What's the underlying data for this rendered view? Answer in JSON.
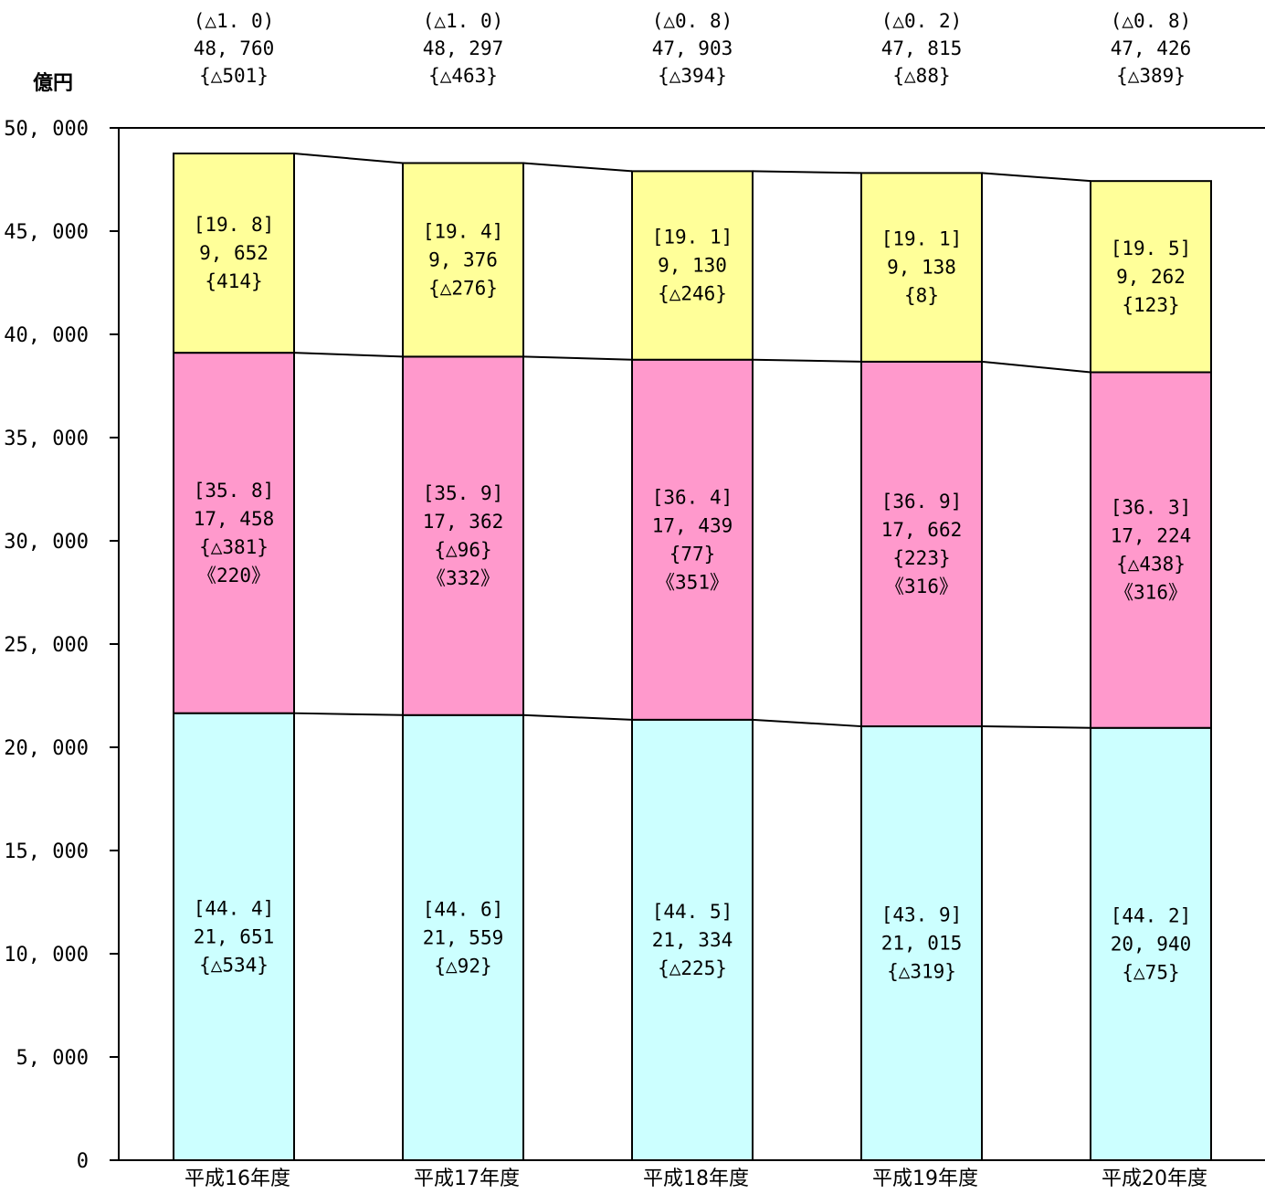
{
  "chart_data": {
    "type": "bar",
    "stacked": true,
    "unit_label": "億円",
    "categories": [
      "平成16年度",
      "平成17年度",
      "平成18年度",
      "平成19年度",
      "平成20年度"
    ],
    "ylim": [
      0,
      50000
    ],
    "yticks": [
      "0",
      "5, 000",
      "10, 000",
      "15, 000",
      "20, 000",
      "25, 000",
      "30, 000",
      "35, 000",
      "40, 000",
      "45, 000",
      "50, 000"
    ],
    "grid": false,
    "series": [
      {
        "color": "#ccffff",
        "values": [
          21651,
          21559,
          21334,
          21015,
          20940
        ],
        "labels": [
          [
            "[44. 4]",
            "21, 651",
            "{△534}"
          ],
          [
            "[44. 6]",
            "21, 559",
            "{△92}"
          ],
          [
            "[44. 5]",
            "21, 334",
            "{△225}"
          ],
          [
            "[43. 9]",
            "21, 015",
            "{△319}"
          ],
          [
            "[44. 2]",
            "20, 940",
            "{△75}"
          ]
        ]
      },
      {
        "color": "#ff99cc",
        "values": [
          17458,
          17362,
          17439,
          17662,
          17224
        ],
        "labels": [
          [
            "[35. 8]",
            "17, 458",
            "{△381}",
            "《220》"
          ],
          [
            "[35. 9]",
            "17, 362",
            "{△96}",
            "《332》"
          ],
          [
            "[36. 4]",
            "17, 439",
            "{77}",
            "《351》"
          ],
          [
            "[36. 9]",
            "17, 662",
            "{223}",
            "《316》"
          ],
          [
            "[36. 3]",
            "17, 224",
            "{△438}",
            "《316》"
          ]
        ]
      },
      {
        "color": "#ffff99",
        "values": [
          9652,
          9376,
          9130,
          9138,
          9262
        ],
        "labels": [
          [
            "[19. 8]",
            "9, 652",
            "{414}"
          ],
          [
            "[19. 4]",
            "9, 376",
            "{△276}"
          ],
          [
            "[19. 1]",
            "9, 130",
            "{△246}"
          ],
          [
            "[19. 1]",
            "9, 138",
            "{8}"
          ],
          [
            "[19. 5]",
            "9, 262",
            "{123}"
          ]
        ]
      }
    ],
    "totals": {
      "values": [
        48760,
        48297,
        47903,
        47815,
        47426
      ],
      "labels": [
        [
          "(△1. 0)",
          "48, 760",
          "{△501}"
        ],
        [
          "(△1. 0)",
          "48, 297",
          "{△463}"
        ],
        [
          "(△0. 8)",
          "47, 903",
          "{△394}"
        ],
        [
          "(△0. 2)",
          "47, 815",
          "{△88}"
        ],
        [
          "(△0. 8)",
          "47, 426",
          "{△389}"
        ]
      ]
    }
  }
}
